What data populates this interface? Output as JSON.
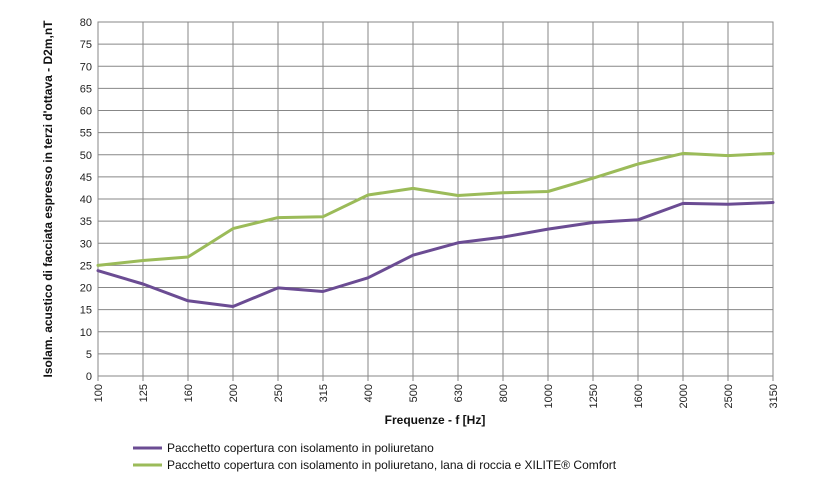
{
  "chart_data": {
    "type": "line",
    "x": [
      "100",
      "125",
      "160",
      "200",
      "250",
      "315",
      "400",
      "500",
      "630",
      "800",
      "1000",
      "1250",
      "1600",
      "2000",
      "2500",
      "3150"
    ],
    "series": [
      {
        "name": "Pacchetto copertura con isolamento in poliuretano",
        "color": "#6b4c93",
        "values": [
          23.8,
          20.8,
          17.0,
          15.7,
          19.9,
          19.1,
          22.2,
          27.3,
          30.1,
          31.4,
          33.2,
          34.7,
          35.3,
          39.0,
          38.8,
          39.2
        ]
      },
      {
        "name": "Pacchetto copertura con isolamento in poliuretano, lana di roccia e XILITE® Comfort",
        "color": "#9bbb59",
        "values": [
          25.0,
          26.1,
          26.9,
          33.3,
          35.8,
          36.0,
          40.9,
          42.4,
          40.8,
          41.4,
          41.7,
          44.7,
          47.9,
          50.3,
          49.8,
          50.3
        ]
      }
    ],
    "xlabel": "Frequenze - f [Hz]",
    "ylabel": "Isolam. acustico di facciata espresso in terzi d'ottava - D2m,nT",
    "ylim": [
      0,
      80
    ],
    "yticks": [
      0,
      5,
      10,
      15,
      20,
      25,
      30,
      35,
      40,
      45,
      50,
      55,
      60,
      65,
      70,
      75,
      80
    ],
    "grid": true,
    "legend_position": "bottom"
  }
}
